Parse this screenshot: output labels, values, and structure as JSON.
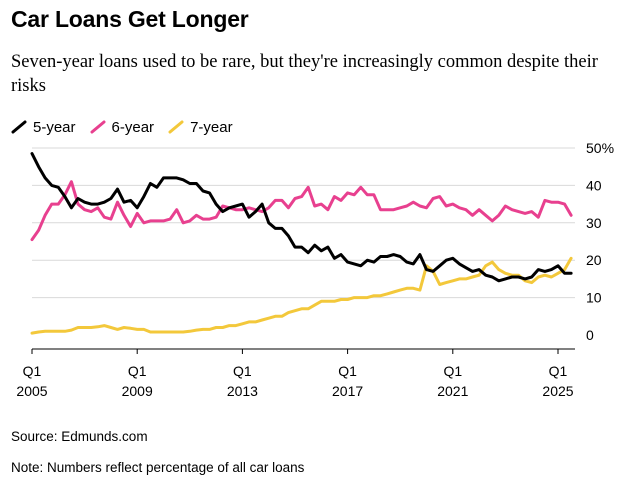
{
  "title": "Car Loans Get Longer",
  "subtitle": "Seven-year loans used to be rare, but they're increasingly common despite their risks",
  "source": "Source: Edmunds.com",
  "note": "Note: Numbers reflect percentage of all car loans",
  "colors": {
    "5-year": "#000000",
    "6-year": "#e8408f",
    "7-year": "#f3c83b",
    "grid": "#d9d9d9",
    "axis": "#000000"
  },
  "chart_data": {
    "type": "line",
    "xlim": [
      2005,
      2025.75
    ],
    "ylim": [
      0,
      50
    ],
    "y_axis_position": "right",
    "grid": true,
    "legend_position": "top-left",
    "y_ticks": [
      {
        "value": 0,
        "label": "0"
      },
      {
        "value": 10,
        "label": "10"
      },
      {
        "value": 20,
        "label": "20"
      },
      {
        "value": 30,
        "label": "30"
      },
      {
        "value": 40,
        "label": "40"
      },
      {
        "value": 50,
        "label": "50%"
      }
    ],
    "x_ticks": [
      {
        "value": 2005,
        "line1": "Q1",
        "line2": "2005"
      },
      {
        "value": 2009,
        "line1": "Q1",
        "line2": "2009"
      },
      {
        "value": 2013,
        "line1": "Q1",
        "line2": "2013"
      },
      {
        "value": 2017,
        "line1": "Q1",
        "line2": "2017"
      },
      {
        "value": 2021,
        "line1": "Q1",
        "line2": "2021"
      },
      {
        "value": 2025,
        "line1": "Q1",
        "line2": "2025"
      }
    ],
    "series": [
      {
        "name": "5-year",
        "color": "#000000",
        "points": [
          [
            2005.0,
            48.5
          ],
          [
            2005.25,
            45.0
          ],
          [
            2005.5,
            42.0
          ],
          [
            2005.75,
            40.0
          ],
          [
            2006.0,
            39.5
          ],
          [
            2006.25,
            37.0
          ],
          [
            2006.5,
            34.0
          ],
          [
            2006.75,
            36.5
          ],
          [
            2007.0,
            35.5
          ],
          [
            2007.25,
            35.0
          ],
          [
            2007.5,
            35.0
          ],
          [
            2007.75,
            35.5
          ],
          [
            2008.0,
            36.5
          ],
          [
            2008.25,
            39.0
          ],
          [
            2008.5,
            35.5
          ],
          [
            2008.75,
            36.0
          ],
          [
            2009.0,
            34.0
          ],
          [
            2009.25,
            37.0
          ],
          [
            2009.5,
            40.5
          ],
          [
            2009.75,
            39.5
          ],
          [
            2010.0,
            42.0
          ],
          [
            2010.25,
            42.0
          ],
          [
            2010.5,
            42.0
          ],
          [
            2010.75,
            41.5
          ],
          [
            2011.0,
            40.5
          ],
          [
            2011.25,
            40.5
          ],
          [
            2011.5,
            38.5
          ],
          [
            2011.75,
            38.0
          ],
          [
            2012.0,
            35.0
          ],
          [
            2012.25,
            33.0
          ],
          [
            2012.5,
            34.0
          ],
          [
            2012.75,
            34.5
          ],
          [
            2013.0,
            35.0
          ],
          [
            2013.25,
            31.5
          ],
          [
            2013.5,
            33.0
          ],
          [
            2013.75,
            35.0
          ],
          [
            2014.0,
            30.0
          ],
          [
            2014.25,
            28.5
          ],
          [
            2014.5,
            28.5
          ],
          [
            2014.75,
            26.5
          ],
          [
            2015.0,
            23.5
          ],
          [
            2015.25,
            23.5
          ],
          [
            2015.5,
            22.0
          ],
          [
            2015.75,
            24.0
          ],
          [
            2016.0,
            22.5
          ],
          [
            2016.25,
            23.5
          ],
          [
            2016.5,
            20.5
          ],
          [
            2016.75,
            21.5
          ],
          [
            2017.0,
            19.5
          ],
          [
            2017.25,
            19.0
          ],
          [
            2017.5,
            18.5
          ],
          [
            2017.75,
            20.0
          ],
          [
            2018.0,
            19.5
          ],
          [
            2018.25,
            21.0
          ],
          [
            2018.5,
            21.0
          ],
          [
            2018.75,
            21.5
          ],
          [
            2019.0,
            21.0
          ],
          [
            2019.25,
            19.5
          ],
          [
            2019.5,
            19.0
          ],
          [
            2019.75,
            21.5
          ],
          [
            2020.0,
            17.5
          ],
          [
            2020.25,
            17.0
          ],
          [
            2020.5,
            18.5
          ],
          [
            2020.75,
            20.0
          ],
          [
            2021.0,
            20.5
          ],
          [
            2021.25,
            19.0
          ],
          [
            2021.5,
            18.0
          ],
          [
            2021.75,
            17.0
          ],
          [
            2022.0,
            17.5
          ],
          [
            2022.25,
            16.0
          ],
          [
            2022.5,
            15.5
          ],
          [
            2022.75,
            14.5
          ],
          [
            2023.0,
            15.0
          ],
          [
            2023.25,
            15.5
          ],
          [
            2023.5,
            15.5
          ],
          [
            2023.75,
            15.0
          ],
          [
            2024.0,
            15.5
          ],
          [
            2024.25,
            17.5
          ],
          [
            2024.5,
            17.0
          ],
          [
            2024.75,
            17.5
          ],
          [
            2025.0,
            18.5
          ],
          [
            2025.25,
            16.5
          ],
          [
            2025.5,
            16.5
          ]
        ]
      },
      {
        "name": "6-year",
        "color": "#e8408f",
        "points": [
          [
            2005.0,
            25.5
          ],
          [
            2005.25,
            28.0
          ],
          [
            2005.5,
            32.0
          ],
          [
            2005.75,
            35.0
          ],
          [
            2006.0,
            35.0
          ],
          [
            2006.25,
            37.5
          ],
          [
            2006.5,
            41.0
          ],
          [
            2006.75,
            35.0
          ],
          [
            2007.0,
            33.5
          ],
          [
            2007.25,
            33.0
          ],
          [
            2007.5,
            34.0
          ],
          [
            2007.75,
            31.5
          ],
          [
            2008.0,
            31.0
          ],
          [
            2008.25,
            35.5
          ],
          [
            2008.5,
            32.0
          ],
          [
            2008.75,
            29.0
          ],
          [
            2009.0,
            32.5
          ],
          [
            2009.25,
            30.0
          ],
          [
            2009.5,
            30.5
          ],
          [
            2009.75,
            30.5
          ],
          [
            2010.0,
            30.5
          ],
          [
            2010.25,
            31.0
          ],
          [
            2010.5,
            33.5
          ],
          [
            2010.75,
            30.0
          ],
          [
            2011.0,
            30.5
          ],
          [
            2011.25,
            32.0
          ],
          [
            2011.5,
            31.0
          ],
          [
            2011.75,
            31.0
          ],
          [
            2012.0,
            31.5
          ],
          [
            2012.25,
            34.5
          ],
          [
            2012.5,
            34.0
          ],
          [
            2012.75,
            33.5
          ],
          [
            2013.0,
            33.5
          ],
          [
            2013.25,
            34.0
          ],
          [
            2013.5,
            33.5
          ],
          [
            2013.75,
            33.0
          ],
          [
            2014.0,
            34.0
          ],
          [
            2014.25,
            36.0
          ],
          [
            2014.5,
            36.0
          ],
          [
            2014.75,
            34.0
          ],
          [
            2015.0,
            36.5
          ],
          [
            2015.25,
            37.0
          ],
          [
            2015.5,
            39.5
          ],
          [
            2015.75,
            34.5
          ],
          [
            2016.0,
            35.0
          ],
          [
            2016.25,
            33.5
          ],
          [
            2016.5,
            37.0
          ],
          [
            2016.75,
            36.0
          ],
          [
            2017.0,
            38.0
          ],
          [
            2017.25,
            37.5
          ],
          [
            2017.5,
            39.5
          ],
          [
            2017.75,
            37.5
          ],
          [
            2018.0,
            37.5
          ],
          [
            2018.25,
            33.5
          ],
          [
            2018.5,
            33.5
          ],
          [
            2018.75,
            33.5
          ],
          [
            2019.0,
            34.0
          ],
          [
            2019.25,
            34.5
          ],
          [
            2019.5,
            35.5
          ],
          [
            2019.75,
            34.5
          ],
          [
            2020.0,
            34.0
          ],
          [
            2020.25,
            36.5
          ],
          [
            2020.5,
            37.0
          ],
          [
            2020.75,
            34.5
          ],
          [
            2021.0,
            35.0
          ],
          [
            2021.25,
            34.0
          ],
          [
            2021.5,
            33.5
          ],
          [
            2021.75,
            32.0
          ],
          [
            2022.0,
            33.5
          ],
          [
            2022.25,
            32.0
          ],
          [
            2022.5,
            30.5
          ],
          [
            2022.75,
            32.0
          ],
          [
            2023.0,
            34.5
          ],
          [
            2023.25,
            33.5
          ],
          [
            2023.5,
            33.0
          ],
          [
            2023.75,
            32.5
          ],
          [
            2024.0,
            33.0
          ],
          [
            2024.25,
            31.5
          ],
          [
            2024.5,
            36.0
          ],
          [
            2024.75,
            35.5
          ],
          [
            2025.0,
            35.5
          ],
          [
            2025.25,
            35.0
          ],
          [
            2025.5,
            32.0
          ]
        ]
      },
      {
        "name": "7-year",
        "color": "#f3c83b",
        "points": [
          [
            2005.0,
            0.5
          ],
          [
            2005.25,
            0.8
          ],
          [
            2005.5,
            1.0
          ],
          [
            2005.75,
            1.0
          ],
          [
            2006.0,
            1.0
          ],
          [
            2006.25,
            1.0
          ],
          [
            2006.5,
            1.3
          ],
          [
            2006.75,
            2.0
          ],
          [
            2007.0,
            2.0
          ],
          [
            2007.25,
            2.0
          ],
          [
            2007.5,
            2.2
          ],
          [
            2007.75,
            2.5
          ],
          [
            2008.0,
            2.0
          ],
          [
            2008.25,
            1.5
          ],
          [
            2008.5,
            2.0
          ],
          [
            2008.75,
            1.8
          ],
          [
            2009.0,
            1.5
          ],
          [
            2009.25,
            1.5
          ],
          [
            2009.5,
            0.8
          ],
          [
            2009.75,
            0.8
          ],
          [
            2010.0,
            0.8
          ],
          [
            2010.25,
            0.8
          ],
          [
            2010.5,
            0.8
          ],
          [
            2010.75,
            0.8
          ],
          [
            2011.0,
            1.0
          ],
          [
            2011.25,
            1.3
          ],
          [
            2011.5,
            1.5
          ],
          [
            2011.75,
            1.5
          ],
          [
            2012.0,
            2.0
          ],
          [
            2012.25,
            2.0
          ],
          [
            2012.5,
            2.5
          ],
          [
            2012.75,
            2.5
          ],
          [
            2013.0,
            3.0
          ],
          [
            2013.25,
            3.5
          ],
          [
            2013.5,
            3.5
          ],
          [
            2013.75,
            4.0
          ],
          [
            2014.0,
            4.5
          ],
          [
            2014.25,
            5.0
          ],
          [
            2014.5,
            5.0
          ],
          [
            2014.75,
            6.0
          ],
          [
            2015.0,
            6.5
          ],
          [
            2015.25,
            7.0
          ],
          [
            2015.5,
            7.0
          ],
          [
            2015.75,
            8.0
          ],
          [
            2016.0,
            9.0
          ],
          [
            2016.25,
            9.0
          ],
          [
            2016.5,
            9.0
          ],
          [
            2016.75,
            9.5
          ],
          [
            2017.0,
            9.5
          ],
          [
            2017.25,
            10.0
          ],
          [
            2017.5,
            10.0
          ],
          [
            2017.75,
            10.0
          ],
          [
            2018.0,
            10.5
          ],
          [
            2018.25,
            10.5
          ],
          [
            2018.5,
            11.0
          ],
          [
            2018.75,
            11.5
          ],
          [
            2019.0,
            12.0
          ],
          [
            2019.25,
            12.5
          ],
          [
            2019.5,
            12.5
          ],
          [
            2019.75,
            12.0
          ],
          [
            2020.0,
            18.5
          ],
          [
            2020.25,
            17.0
          ],
          [
            2020.5,
            13.5
          ],
          [
            2020.75,
            14.0
          ],
          [
            2021.0,
            14.5
          ],
          [
            2021.25,
            15.0
          ],
          [
            2021.5,
            15.0
          ],
          [
            2021.75,
            15.5
          ],
          [
            2022.0,
            16.0
          ],
          [
            2022.25,
            18.5
          ],
          [
            2022.5,
            19.5
          ],
          [
            2022.75,
            17.5
          ],
          [
            2023.0,
            16.5
          ],
          [
            2023.25,
            16.0
          ],
          [
            2023.5,
            16.0
          ],
          [
            2023.75,
            14.5
          ],
          [
            2024.0,
            14.0
          ],
          [
            2024.25,
            15.5
          ],
          [
            2024.5,
            16.0
          ],
          [
            2024.75,
            15.5
          ],
          [
            2025.0,
            16.5
          ],
          [
            2025.25,
            17.5
          ],
          [
            2025.5,
            20.5
          ]
        ]
      }
    ]
  }
}
